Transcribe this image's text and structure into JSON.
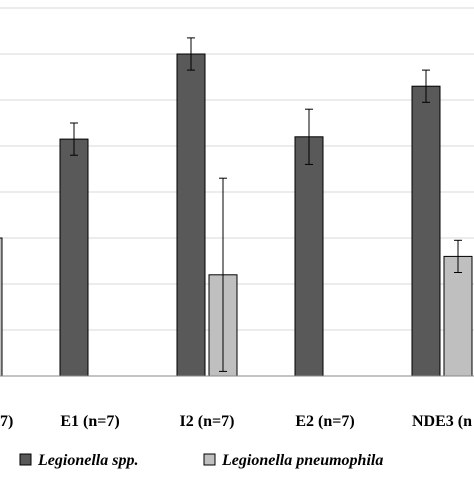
{
  "chart_data": {
    "type": "bar",
    "title": "",
    "xlabel": "",
    "ylabel": "",
    "ylim": [
      0,
      8
    ],
    "grid": true,
    "legend_position": "bottom",
    "categories": [
      "7)",
      "E1 (n=7)",
      "I2 (n=7)",
      "E2 (n=7)",
      "NDE3 (n"
    ],
    "series": [
      {
        "name": "Legionella spp.",
        "color": "#595959",
        "values": [
          null,
          5.15,
          7.0,
          5.2,
          6.3
        ],
        "errors": [
          null,
          0.35,
          0.35,
          0.6,
          0.35
        ]
      },
      {
        "name": "Legionella pneumophila",
        "color": "#bfbfbf",
        "values": [
          3.0,
          null,
          2.2,
          null,
          2.6
        ],
        "errors": [
          null,
          null,
          2.1,
          null,
          0.35
        ]
      }
    ]
  }
}
